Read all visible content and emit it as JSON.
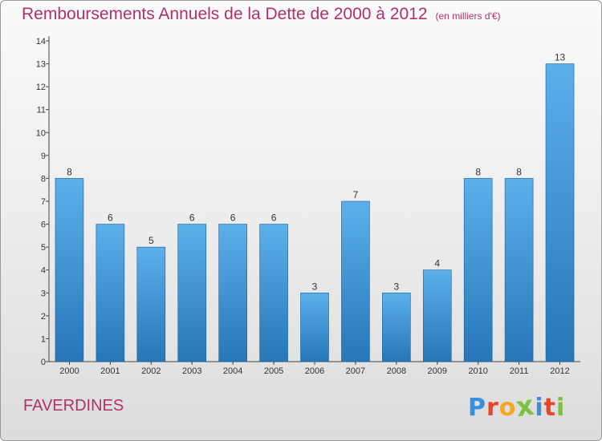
{
  "header": {
    "title": "Remboursements Annuels de la Dette de 2000 à 2012",
    "unit": "(en milliers d'€)"
  },
  "footer": {
    "commune": "FAVERDINES",
    "logo": {
      "text": "Proxiti",
      "letters": [
        "P",
        "r",
        "o",
        "x",
        "i",
        "t",
        "i"
      ],
      "colors": [
        "#3a8fd8",
        "#e8452c",
        "#f5a623",
        "#7cc242",
        "#3a8fd8",
        "#e8452c",
        "#7cc242"
      ]
    }
  },
  "colors": {
    "bar_light": "#5cb0ea",
    "bar_dark": "#2676b8",
    "title": "#b0306a"
  },
  "chart_data": {
    "type": "bar",
    "categories": [
      "2000",
      "2001",
      "2002",
      "2003",
      "2004",
      "2005",
      "2006",
      "2007",
      "2008",
      "2009",
      "2010",
      "2011",
      "2012"
    ],
    "values": [
      8,
      6,
      5,
      6,
      6,
      6,
      3,
      7,
      3,
      4,
      8,
      8,
      13
    ],
    "data_labels": [
      "8",
      "6",
      "5",
      "6",
      "6",
      "6",
      "3",
      "7",
      "3",
      "4",
      "8",
      "8",
      "13"
    ],
    "y_ticks": [
      "0",
      "1",
      "2",
      "3",
      "4",
      "5",
      "6",
      "7",
      "8",
      "9",
      "10",
      "11",
      "12",
      "13",
      "14"
    ],
    "ylim": [
      0,
      14
    ],
    "xlabel": "",
    "ylabel": "",
    "grid": false
  }
}
